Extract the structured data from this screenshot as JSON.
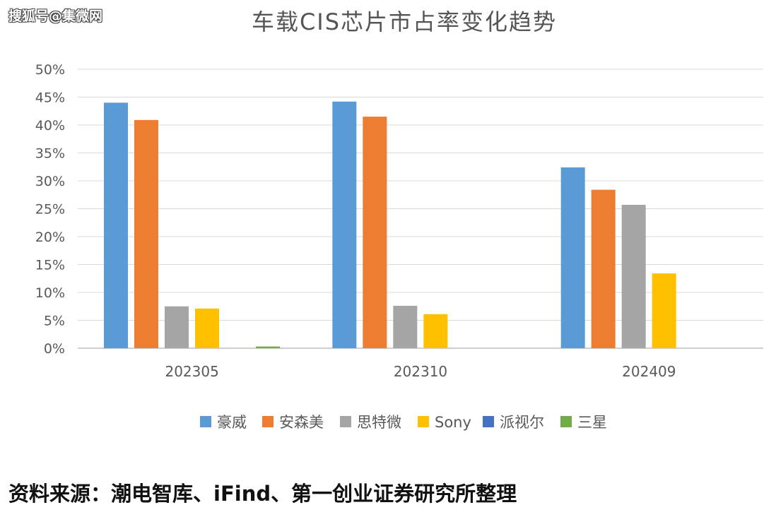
{
  "watermark": "搜狐号@集微网",
  "source_note": "资料来源：潮电智库、iFind、第一创业证券研究所整理",
  "chart_data": {
    "type": "bar",
    "title": "车载CIS芯片市占率变化趋势",
    "xlabel": "",
    "ylabel": "",
    "categories": [
      "202305",
      "202310",
      "202409"
    ],
    "ylim": [
      0,
      50
    ],
    "yticks": [
      0,
      5,
      10,
      15,
      20,
      25,
      30,
      35,
      40,
      45,
      50
    ],
    "ytick_labels": [
      "0%",
      "5%",
      "10%",
      "15%",
      "20%",
      "25%",
      "30%",
      "35%",
      "40%",
      "45%",
      "50%"
    ],
    "grid": true,
    "legend_position": "bottom",
    "series": [
      {
        "name": "豪威",
        "color": "#5B9BD5",
        "values": [
          44.0,
          44.2,
          32.4
        ]
      },
      {
        "name": "安森美",
        "color": "#ED7D31",
        "values": [
          40.9,
          41.5,
          28.4
        ]
      },
      {
        "name": "思特微",
        "color": "#A5A5A5",
        "values": [
          7.5,
          7.6,
          25.7
        ]
      },
      {
        "name": "Sony",
        "color": "#FFC000",
        "values": [
          7.1,
          6.1,
          13.4
        ]
      },
      {
        "name": "派视尔",
        "color": "#4472C4",
        "values": [
          0,
          0,
          0
        ]
      },
      {
        "name": "三星",
        "color": "#70AD47",
        "values": [
          0.3,
          0,
          0
        ]
      }
    ]
  }
}
